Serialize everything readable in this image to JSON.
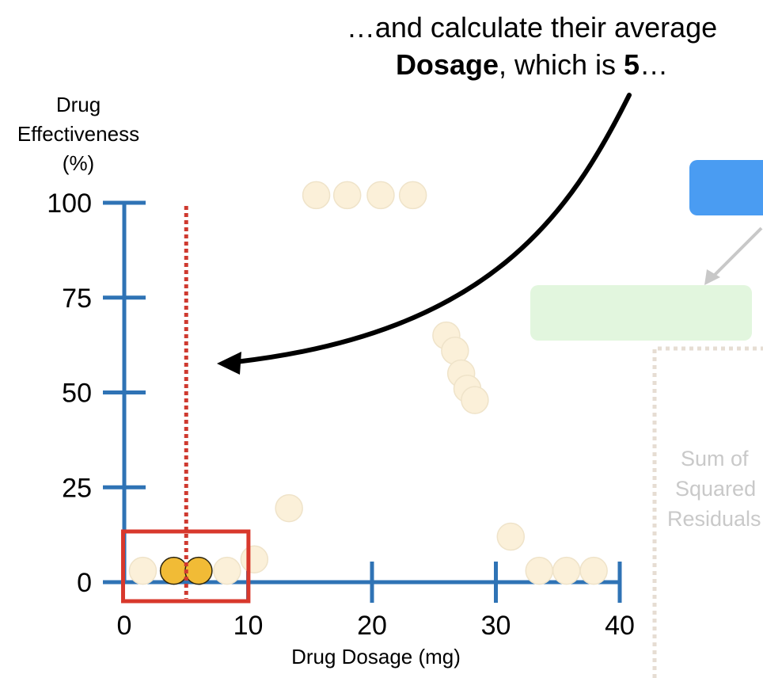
{
  "annotation": {
    "line1": "…and calculate their average",
    "line2_bold_a": "Dosage",
    "line2_mid": ", which is ",
    "line2_bold_b": "5",
    "line2_end": "…"
  },
  "chart_data": {
    "type": "scatter",
    "xlabel": "Drug Dosage (mg)",
    "ylabel": [
      "Drug",
      "Effectiveness",
      "(%)"
    ],
    "xlim": [
      0,
      40
    ],
    "ylim": [
      0,
      100
    ],
    "x_ticks": [
      0,
      10,
      20,
      30,
      40
    ],
    "y_ticks": [
      0,
      25,
      50,
      75,
      100
    ],
    "points_faded": [
      {
        "x": 1.5,
        "y": 3
      },
      {
        "x": 8.3,
        "y": 3
      },
      {
        "x": 10.5,
        "y": 6
      },
      {
        "x": 13.3,
        "y": 19.5
      },
      {
        "x": 15.5,
        "y": 102
      },
      {
        "x": 18,
        "y": 102
      },
      {
        "x": 20.7,
        "y": 102
      },
      {
        "x": 23.3,
        "y": 102
      },
      {
        "x": 26,
        "y": 65
      },
      {
        "x": 26.7,
        "y": 61
      },
      {
        "x": 27.2,
        "y": 55
      },
      {
        "x": 27.7,
        "y": 51
      },
      {
        "x": 28.3,
        "y": 48
      },
      {
        "x": 31.2,
        "y": 12
      },
      {
        "x": 33.5,
        "y": 3
      },
      {
        "x": 35.7,
        "y": 3
      },
      {
        "x": 37.9,
        "y": 3
      }
    ],
    "points_highlighted": [
      {
        "x": 4,
        "y": 3
      },
      {
        "x": 6,
        "y": 3
      }
    ],
    "average_dosage_line": 5,
    "highlight_box": {
      "x_range": [
        1.5,
        8.3
      ]
    }
  },
  "background_panel": {
    "label_lines": [
      "Sum of",
      "Squared",
      "Residuals"
    ]
  },
  "colors": {
    "axis": "#2f73b5",
    "faded_point_fill": "#fbf0d9",
    "faded_point_stroke": "#efe3c9",
    "highlight_point_fill": "#f1bb36",
    "highlight_point_stroke": "#2a2410",
    "average_line": "#cf3a30",
    "box": "#d8382c",
    "arrow": "#000000",
    "blue_block": "#4a9cf2",
    "green_block": "#e2f6de",
    "dotted_panel": "#e6ddd3"
  }
}
